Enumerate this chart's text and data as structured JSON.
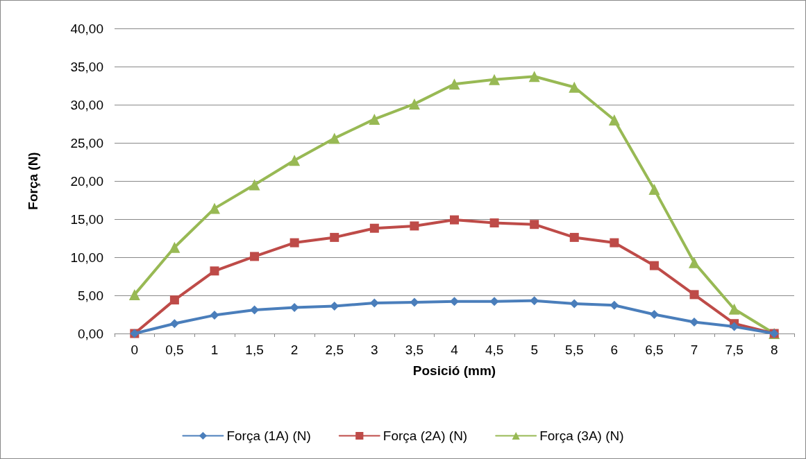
{
  "chart_data": {
    "type": "line",
    "xlabel": "Posició (mm)",
    "ylabel": "Força (N)",
    "categories": [
      "0",
      "0,5",
      "1",
      "1,5",
      "2",
      "2,5",
      "3",
      "3,5",
      "4",
      "4,5",
      "5",
      "5,5",
      "6",
      "6,5",
      "7",
      "7,5",
      "8"
    ],
    "series": [
      {
        "name": "Força (1A) (N)",
        "color": "#4a7ebb",
        "marker": "diamond",
        "values": [
          0,
          1.3,
          2.4,
          3.1,
          3.4,
          3.6,
          4.0,
          4.1,
          4.2,
          4.2,
          4.3,
          3.9,
          3.7,
          2.5,
          1.5,
          0.9,
          0
        ]
      },
      {
        "name": "Força (2A) (N)",
        "color": "#be4b48",
        "marker": "square",
        "values": [
          0,
          4.4,
          8.2,
          10.1,
          11.9,
          12.6,
          13.8,
          14.1,
          14.9,
          14.5,
          14.3,
          12.6,
          11.9,
          8.9,
          5.1,
          1.3,
          0
        ]
      },
      {
        "name": "Força (3A) (N)",
        "color": "#98b954",
        "marker": "triangle",
        "values": [
          5.1,
          11.3,
          16.4,
          19.5,
          22.7,
          25.6,
          28.1,
          30.1,
          32.7,
          33.3,
          33.7,
          32.3,
          28.0,
          18.9,
          9.3,
          3.2,
          0
        ]
      }
    ],
    "ylim": [
      0,
      40
    ],
    "yticks": [
      {
        "value": 0,
        "label": "0,00"
      },
      {
        "value": 5,
        "label": "5,00"
      },
      {
        "value": 10,
        "label": "10,00"
      },
      {
        "value": 15,
        "label": "15,00"
      },
      {
        "value": 20,
        "label": "20,00"
      },
      {
        "value": 25,
        "label": "25,00"
      },
      {
        "value": 30,
        "label": "30,00"
      },
      {
        "value": 35,
        "label": "35,00"
      },
      {
        "value": 40,
        "label": "40,00"
      }
    ],
    "grid": "y",
    "legend": "bottom",
    "line_style": "solid"
  }
}
